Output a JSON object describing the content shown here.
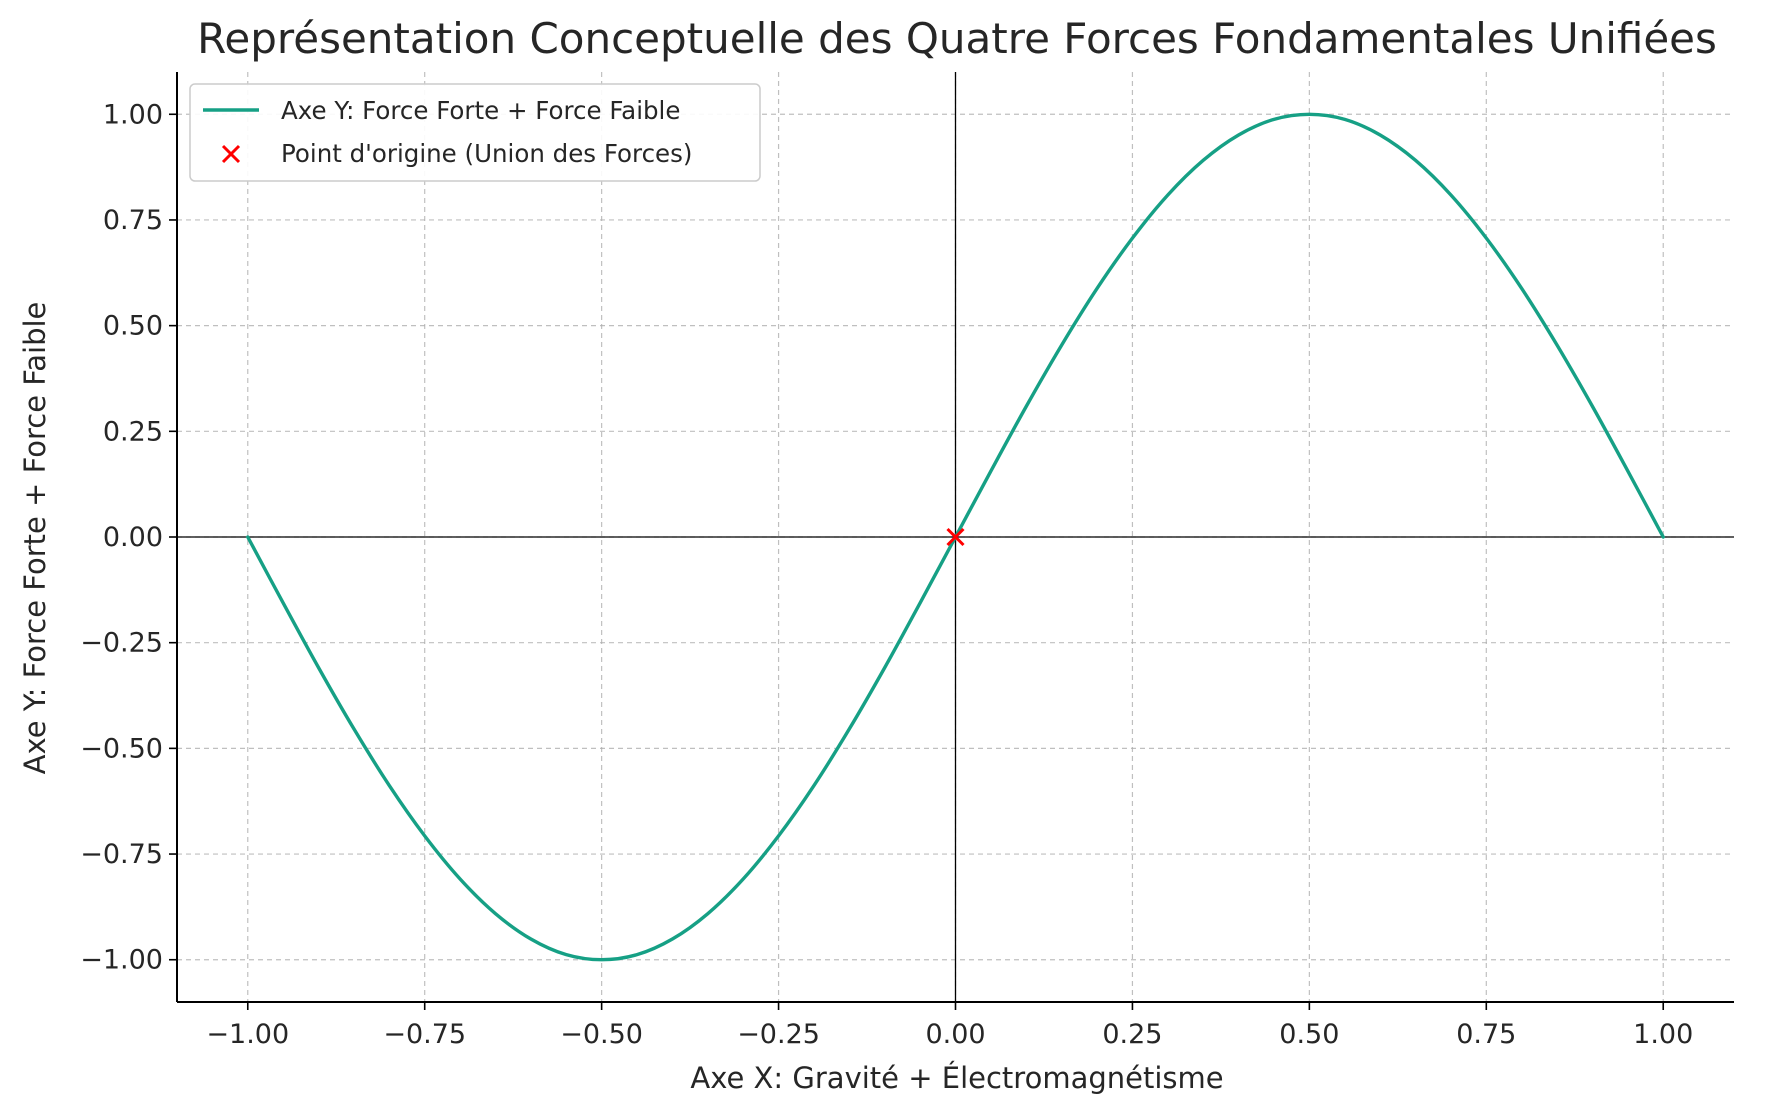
{
  "chart_data": {
    "type": "line",
    "title": "Représentation Conceptuelle des Quatre Forces Fondamentales Unifiées",
    "xlabel": "Axe X: Gravité + Électromagnétisme",
    "ylabel": "Axe Y: Force Forte + Force Faible",
    "xlim": [
      -1.1,
      1.1
    ],
    "ylim": [
      -1.1,
      1.1
    ],
    "x_ticks": [
      -1.0,
      -0.75,
      -0.5,
      -0.25,
      0.0,
      0.25,
      0.5,
      0.75,
      1.0
    ],
    "x_tick_labels": [
      "−1.00",
      "−0.75",
      "−0.50",
      "−0.25",
      "0.00",
      "0.25",
      "0.50",
      "0.75",
      "1.00"
    ],
    "y_ticks": [
      1.0,
      0.75,
      0.5,
      0.25,
      0.0,
      -0.25,
      -0.5,
      -0.75,
      -1.0
    ],
    "y_tick_labels": [
      "1.00",
      "0.75",
      "0.50",
      "0.25",
      "0.00",
      "−0.25",
      "−0.50",
      "−0.75",
      "−1.00"
    ],
    "grid": true,
    "legend_position": "upper-left",
    "series": [
      {
        "name": "Axe Y: Force Forte + Force Faible",
        "kind": "line",
        "color": "#16a085",
        "x": [
          -1.0,
          -0.95,
          -0.9,
          -0.85,
          -0.8,
          -0.75,
          -0.7,
          -0.65,
          -0.6,
          -0.55,
          -0.5,
          -0.45,
          -0.4,
          -0.35,
          -0.3,
          -0.25,
          -0.2,
          -0.15,
          -0.1,
          -0.05,
          0.0,
          0.05,
          0.1,
          0.15,
          0.2,
          0.25,
          0.3,
          0.35,
          0.4,
          0.45,
          0.5,
          0.55,
          0.6,
          0.65,
          0.7,
          0.75,
          0.8,
          0.85,
          0.9,
          0.95,
          1.0
        ],
        "y": [
          0.0,
          -0.156,
          -0.309,
          -0.454,
          -0.588,
          -0.707,
          -0.809,
          -0.891,
          -0.951,
          -0.988,
          -1.0,
          -0.988,
          -0.951,
          -0.891,
          -0.809,
          -0.707,
          -0.588,
          -0.454,
          -0.309,
          -0.156,
          0.0,
          0.156,
          0.309,
          0.454,
          0.588,
          0.707,
          0.809,
          0.891,
          0.951,
          0.988,
          1.0,
          0.988,
          0.951,
          0.891,
          0.809,
          0.707,
          0.588,
          0.454,
          0.309,
          0.156,
          0.0
        ]
      },
      {
        "name": "Point d'origine (Union des Forces)",
        "kind": "scatter",
        "marker": "x",
        "color": "#ff0000",
        "x": [
          0.0
        ],
        "y": [
          0.0
        ]
      }
    ],
    "reference_lines": [
      {
        "axis": "x",
        "value": 0.0,
        "color": "#000000"
      },
      {
        "axis": "y",
        "value": 0.0,
        "color": "#000000"
      }
    ]
  }
}
